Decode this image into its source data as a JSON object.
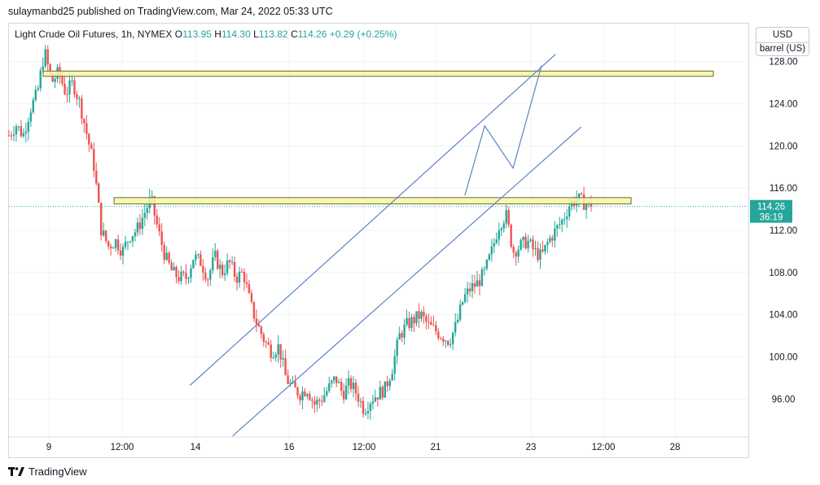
{
  "header": {
    "published_note": "sulaymanbd25 published on TradingView.com, Mar 24, 2022 05:33 UTC"
  },
  "legend": {
    "symbol": "Light Crude Oil Futures, 1h, NYMEX",
    "open_label": "O",
    "open_value": "113.95",
    "high_label": "H",
    "high_value": "114.30",
    "low_label": "L",
    "low_value": "113.82",
    "close_label": "C",
    "close_value": "114.26",
    "change": "+0.29 (+0.25%)"
  },
  "scale": {
    "currency": "USD",
    "unit": "barrel (US)"
  },
  "price_tag": {
    "price": "114.26",
    "countdown": "36:19"
  },
  "footer": {
    "brand": "TradingView"
  },
  "colors": {
    "up": "#26a69a",
    "down": "#ef5350",
    "trendline": "#5b84c4",
    "zone_fill": "#f6f6a8",
    "zone_border": "#6b6b2a",
    "price_line": "#26a69a"
  },
  "icons": {
    "logo": "tradingview-logo-icon"
  },
  "chart_data": {
    "type": "candlestick",
    "symbol": "Light Crude Oil Futures, 1h, NYMEX",
    "y_ticks": [
      96,
      100,
      104,
      108,
      112,
      116,
      120,
      124,
      128
    ],
    "y_tick_labels": [
      "96.00",
      "100.00",
      "104.00",
      "108.00",
      "112.00",
      "116.00",
      "120.00",
      "124.00",
      "128.00"
    ],
    "ylim": [
      92.4,
      131.6
    ],
    "x_tick_labels": [
      "9",
      "12:00",
      "14",
      "16",
      "12:00",
      "21",
      "23",
      "12:00",
      "28"
    ],
    "last_price": 114.26,
    "price_path": [
      [
        0,
        121
      ],
      [
        1,
        122
      ],
      [
        2,
        121
      ],
      [
        3,
        123.5
      ],
      [
        4,
        125
      ],
      [
        5,
        129
      ],
      [
        6,
        126
      ],
      [
        7,
        127
      ],
      [
        8,
        125
      ],
      [
        9,
        126
      ],
      [
        10,
        124
      ],
      [
        11,
        121
      ],
      [
        12,
        118
      ],
      [
        13,
        112
      ],
      [
        14,
        110.5
      ],
      [
        15,
        111
      ],
      [
        16,
        110
      ],
      [
        17,
        111.5
      ],
      [
        18,
        112
      ],
      [
        19,
        113.5
      ],
      [
        20,
        115
      ],
      [
        21,
        112
      ],
      [
        22,
        109.5
      ],
      [
        23,
        108
      ],
      [
        24,
        107.5
      ],
      [
        25,
        107.5
      ],
      [
        26,
        109.5
      ],
      [
        27,
        109
      ],
      [
        28,
        107.5
      ],
      [
        29,
        109.5
      ],
      [
        30,
        108
      ],
      [
        31,
        109
      ],
      [
        32,
        107.5
      ],
      [
        33,
        108
      ],
      [
        34,
        105
      ],
      [
        35,
        103
      ],
      [
        36,
        101.5
      ],
      [
        37,
        100.5
      ],
      [
        38,
        101
      ],
      [
        39,
        98
      ],
      [
        40,
        97
      ],
      [
        41,
        96.5
      ],
      [
        42,
        97
      ],
      [
        43,
        95.5
      ],
      [
        44,
        96
      ],
      [
        45,
        97
      ],
      [
        46,
        98
      ],
      [
        47,
        96.5
      ],
      [
        48,
        97.5
      ],
      [
        49,
        96.5
      ],
      [
        50,
        95
      ],
      [
        51,
        96
      ],
      [
        52,
        96.5
      ],
      [
        53,
        97
      ],
      [
        54,
        99
      ],
      [
        55,
        102
      ],
      [
        56,
        103
      ],
      [
        57,
        103.5
      ],
      [
        58,
        104
      ],
      [
        59,
        103
      ],
      [
        60,
        102.5
      ],
      [
        61,
        102
      ],
      [
        62,
        101.5
      ],
      [
        63,
        103
      ],
      [
        64,
        105.5
      ],
      [
        65,
        106.5
      ],
      [
        66,
        107
      ],
      [
        67,
        108
      ],
      [
        68,
        110
      ],
      [
        69,
        112.5
      ],
      [
        70,
        113.5
      ],
      [
        71,
        110
      ],
      [
        72,
        110.5
      ],
      [
        73,
        111
      ],
      [
        74,
        110
      ],
      [
        75,
        109.5
      ],
      [
        76,
        111
      ],
      [
        77,
        112
      ],
      [
        78,
        113
      ],
      [
        79,
        114.5
      ],
      [
        80,
        115
      ],
      [
        81,
        114.6
      ],
      [
        82,
        114.26
      ]
    ],
    "levels": [
      {
        "label": "resistance zone",
        "price_low": 126.6,
        "price_high": 127.1
      },
      {
        "label": "resistance zone",
        "price_low": 114.5,
        "price_high": 115.1
      }
    ],
    "channel": {
      "upper": [
        [
          25.5,
          97.3
        ],
        [
          77.0,
          128.7
        ]
      ],
      "lower": [
        [
          31.5,
          92.5
        ],
        [
          80.6,
          121.8
        ]
      ]
    },
    "projection": [
      [
        64.2,
        115.3
      ],
      [
        67.0,
        121.9
      ],
      [
        71.0,
        117.9
      ],
      [
        75.0,
        127.6
      ]
    ]
  }
}
